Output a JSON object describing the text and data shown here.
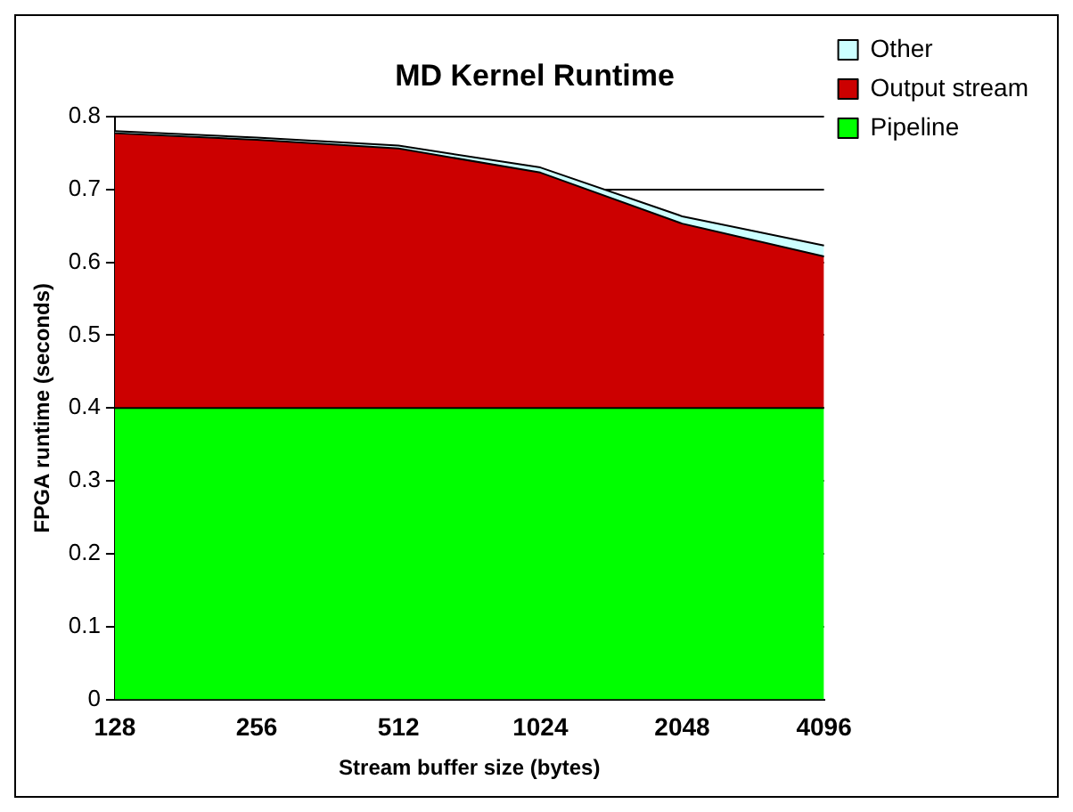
{
  "chart_data": {
    "type": "area",
    "title": "MD Kernel Runtime",
    "xlabel": "Stream buffer size (bytes)",
    "ylabel": "FPGA runtime (seconds)",
    "categories": [
      "128",
      "256",
      "512",
      "1024",
      "2048",
      "4096"
    ],
    "stacked": true,
    "series": [
      {
        "name": "Pipeline",
        "color": "#00ff00",
        "values": [
          0.4,
          0.4,
          0.4,
          0.4,
          0.4,
          0.4
        ]
      },
      {
        "name": "Output stream",
        "color": "#cc0000",
        "values": [
          0.377,
          0.368,
          0.356,
          0.323,
          0.253,
          0.208
        ]
      },
      {
        "name": "Other",
        "color": "#ccffff",
        "values": [
          0.003,
          0.003,
          0.004,
          0.007,
          0.01,
          0.015
        ]
      }
    ],
    "ylim": [
      0,
      0.8
    ],
    "yticks": [
      0,
      0.1,
      0.2,
      0.3,
      0.4,
      0.5,
      0.6,
      0.7,
      0.8
    ],
    "grid": "y",
    "legend": "top right"
  }
}
